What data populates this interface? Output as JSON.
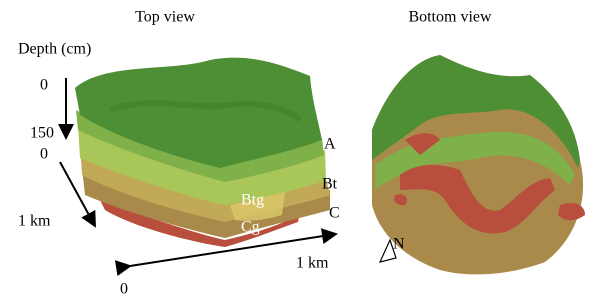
{
  "panels": [
    {
      "title": "Top view"
    },
    {
      "title": "Bottom view"
    }
  ],
  "axes": {
    "depth_label": "Depth (cm)",
    "depth_top": "0",
    "depth_bottom": "150",
    "y_start": "0",
    "y_end": "1 km",
    "x_end": "1 km",
    "x_start": "0"
  },
  "layers": [
    "A",
    "Bt",
    "Btg",
    "C",
    "Cg"
  ],
  "north": "N"
}
